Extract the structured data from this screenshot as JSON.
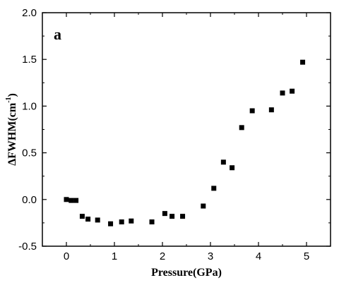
{
  "chart_data": {
    "type": "scatter",
    "panel_label": "a",
    "xlabel": "Pressure(GPa)",
    "ylabel": {
      "main": "ΔFWHM(cm",
      "superscript": "-1",
      "close": ")"
    },
    "xlim": [
      -0.5,
      5.5
    ],
    "ylim": [
      -0.5,
      2.0
    ],
    "xticks": [
      0,
      1,
      2,
      3,
      4,
      5
    ],
    "xtick_labels": [
      "0",
      "1",
      "2",
      "3",
      "4",
      "5"
    ],
    "yticks": [
      -0.5,
      0.0,
      0.5,
      1.0,
      1.5,
      2.0
    ],
    "ytick_labels": [
      "-0.5",
      "0.0",
      "0.5",
      "1.0",
      "1.5",
      "2.0"
    ],
    "grid": false,
    "marker": "square",
    "marker_color": "#000000",
    "series": [
      {
        "x": [
          0.0,
          0.1,
          0.2,
          0.33,
          0.45,
          0.65,
          0.92,
          1.15,
          1.35,
          1.78,
          2.05,
          2.2,
          2.42,
          2.85,
          3.07,
          3.27,
          3.45,
          3.65,
          3.87,
          4.27,
          4.5,
          4.7,
          4.92
        ],
        "y": [
          0.0,
          -0.01,
          -0.01,
          -0.18,
          -0.21,
          -0.22,
          -0.26,
          -0.24,
          -0.23,
          -0.24,
          -0.15,
          -0.18,
          -0.18,
          -0.07,
          0.12,
          0.4,
          0.34,
          0.77,
          0.95,
          0.96,
          1.14,
          1.16,
          1.47
        ]
      }
    ]
  }
}
